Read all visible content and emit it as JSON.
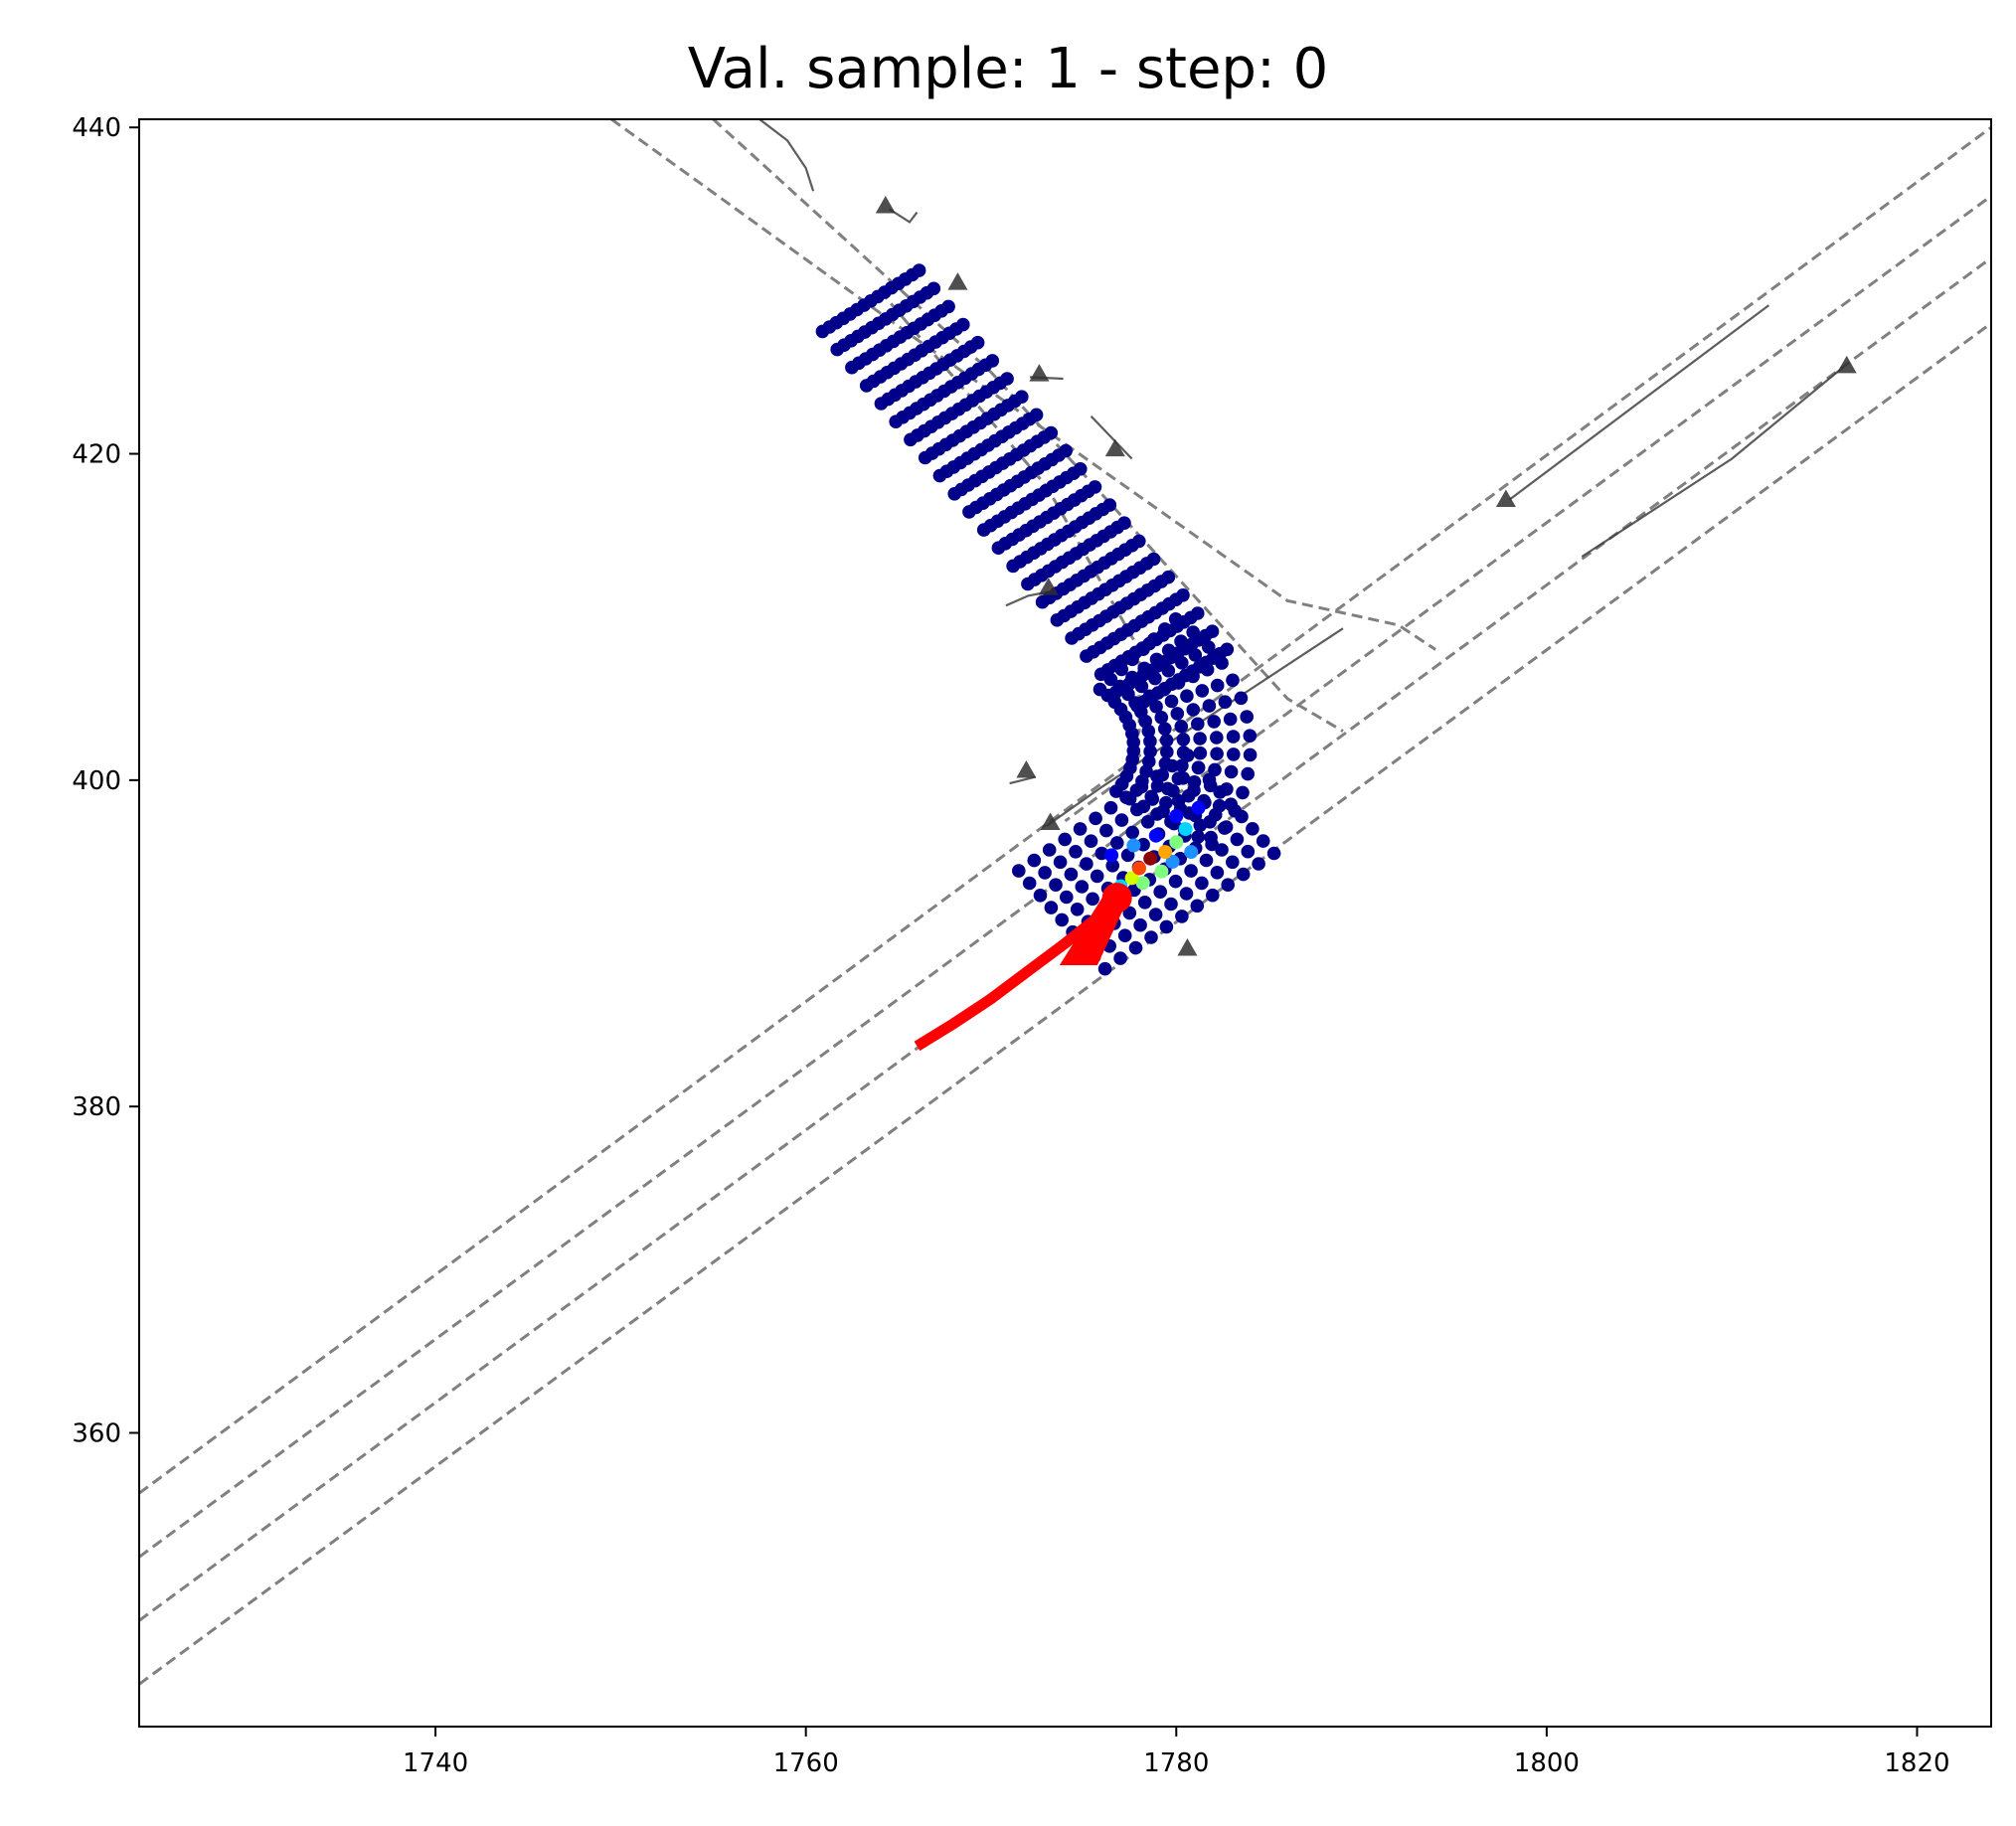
{
  "chart_data": {
    "type": "scatter",
    "title": "Val. sample: 1 - step: 0",
    "xlabel": "",
    "ylabel": "",
    "xlim": [
      1724,
      1824
    ],
    "ylim": [
      342,
      440.5
    ],
    "grid": false,
    "xticks": [
      1740,
      1760,
      1780,
      1800,
      1820
    ],
    "yticks": [
      360,
      380,
      400,
      420,
      440
    ],
    "colors": {
      "lane_line": "#808080",
      "boundary": "#404040",
      "marker": "#303030",
      "trajectory": "#ff0000",
      "low_density": "#00008b",
      "colormap": [
        "#00008b",
        "#0000ff",
        "#1e90ff",
        "#00d4ff",
        "#7fff7f",
        "#d4ff00",
        "#ffa500",
        "#ff4500",
        "#8b0000"
      ]
    },
    "lane_lines": [
      {
        "points": [
          [
            1724,
            356.3
          ],
          [
            1824,
            440
          ]
        ]
      },
      {
        "points": [
          [
            1724,
            352.4
          ],
          [
            1824,
            435.8
          ]
        ]
      },
      {
        "points": [
          [
            1724,
            348.5
          ],
          [
            1824,
            432.0
          ]
        ]
      },
      {
        "points": [
          [
            1724,
            344.6
          ],
          [
            1824,
            428.0
          ]
        ]
      },
      {
        "points": [
          [
            1749.5,
            440.5
          ],
          [
            1766,
            427
          ],
          [
            1786,
            411
          ],
          [
            1792,
            409.5
          ],
          [
            1794,
            408
          ]
        ]
      },
      {
        "points": [
          [
            1755,
            440.5
          ],
          [
            1770,
            425
          ],
          [
            1782,
            410
          ],
          [
            1786,
            405
          ],
          [
            1789,
            403
          ]
        ]
      },
      {
        "points": [
          [
            1764,
            430
          ],
          [
            1773,
            418
          ],
          [
            1778,
            408
          ],
          [
            1778,
            403
          ],
          [
            1777,
            400
          ],
          [
            1774,
            397.5
          ]
        ]
      }
    ],
    "boundaries": [
      {
        "points": [
          [
            1757.5,
            440.5
          ],
          [
            1759,
            439.2
          ],
          [
            1760,
            437.5
          ],
          [
            1760.4,
            436.1
          ]
        ]
      },
      {
        "points": [
          [
            1764.5,
            435
          ],
          [
            1765.6,
            434.2
          ],
          [
            1766,
            434.8
          ]
        ]
      },
      {
        "points": [
          [
            1772.1,
            424.7
          ],
          [
            1773.9,
            424.6
          ]
        ]
      },
      {
        "points": [
          [
            1775.4,
            422.3
          ],
          [
            1777.6,
            419.7
          ]
        ]
      },
      {
        "points": [
          [
            1770.8,
            410.7
          ],
          [
            1772,
            411.3
          ],
          [
            1773.8,
            411.7
          ]
        ]
      },
      {
        "points": [
          [
            1771,
            399.8
          ],
          [
            1772.4,
            400.2
          ]
        ]
      },
      {
        "points": [
          [
            1773,
            397.2
          ],
          [
            1776,
            399.6
          ],
          [
            1789,
            409.3
          ]
        ]
      },
      {
        "points": [
          [
            1798,
            417.2
          ],
          [
            1812,
            429.1
          ]
        ]
      },
      {
        "points": [
          [
            1801.9,
            413.7
          ],
          [
            1810,
            419.7
          ],
          [
            1816,
            425.3
          ]
        ]
      }
    ],
    "markers": [
      [
        1764.3,
        435.2
      ],
      [
        1768.2,
        430.5
      ],
      [
        1772.6,
        424.9
      ],
      [
        1776.7,
        420.3
      ],
      [
        1773.1,
        411.8
      ],
      [
        1797.8,
        417.2
      ],
      [
        1816.2,
        425.4
      ],
      [
        1771.9,
        400.6
      ],
      [
        1773.2,
        397.4
      ],
      [
        1780.6,
        389.7
      ]
    ],
    "grid_points": {
      "arm_a": {
        "x0": 1760.9,
        "y0": 427.5,
        "dir": [
          0.582,
          -0.813
        ],
        "perp": [
          0.813,
          0.582
        ],
        "rows": 15,
        "cols": 22,
        "spacing": 0.85
      },
      "arm_b": {
        "center": [
          1778.8,
          395.3
        ],
        "dir": [
          0.79,
          0.613
        ],
        "perp": [
          -0.613,
          0.79
        ]
      },
      "heat": [
        {
          "x": 1778.6,
          "y": 395.2,
          "v": 1.0
        },
        {
          "x": 1778.0,
          "y": 394.6,
          "v": 0.92
        },
        {
          "x": 1779.4,
          "y": 395.6,
          "v": 0.78
        },
        {
          "x": 1777.6,
          "y": 394.0,
          "v": 0.65
        },
        {
          "x": 1780.0,
          "y": 396.2,
          "v": 0.55
        },
        {
          "x": 1779.2,
          "y": 394.4,
          "v": 0.48
        },
        {
          "x": 1778.2,
          "y": 393.7,
          "v": 0.45
        },
        {
          "x": 1780.5,
          "y": 397.0,
          "v": 0.38
        },
        {
          "x": 1777.0,
          "y": 393.5,
          "v": 0.32
        },
        {
          "x": 1779.8,
          "y": 395.0,
          "v": 0.3
        },
        {
          "x": 1780.8,
          "y": 395.6,
          "v": 0.25
        },
        {
          "x": 1777.7,
          "y": 396.0,
          "v": 0.2
        },
        {
          "x": 1778.9,
          "y": 396.6,
          "v": 0.18
        },
        {
          "x": 1780.0,
          "y": 397.8,
          "v": 0.15
        },
        {
          "x": 1776.5,
          "y": 395.4,
          "v": 0.12
        },
        {
          "x": 1781.2,
          "y": 398.3,
          "v": 0.1
        }
      ]
    },
    "trajectory": {
      "history": [
        [
          1766,
          383.7
        ],
        [
          1768,
          385.1
        ],
        [
          1770,
          386.6
        ],
        [
          1772,
          388.3
        ],
        [
          1774,
          390.0
        ],
        [
          1776,
          391.8
        ],
        [
          1776.8,
          392.8
        ]
      ],
      "current": [
        1776.8,
        392.8
      ],
      "heading_tip": [
        1775.2,
        390.0
      ]
    }
  }
}
